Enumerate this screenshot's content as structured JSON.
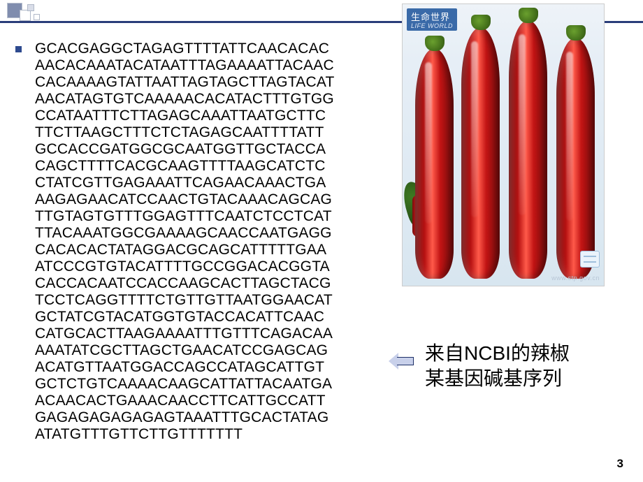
{
  "decor": {
    "rule_color": "#2a3d7a",
    "bullet_color": "#2e4a8f"
  },
  "sequence": "GCACGAGGCTAGAGTTTTATTCAACACAC\nAACACAAATACATAATTTAGAAAATTACAAC\nCACAAAAGTATTAATTAGTAGCTTAGTACAT\nAACATAGTGTCAAAAACACATACTTTGTGG\nCCATAATTTCTTAGAGCAAATTAATGCTTC\nTTCTTAAGCTTTCTCTAGAGCAATTTTATT\nGCCACCGATGGCGCAATGGTTGCTACCA\nCAGCTTTTCACGCAAGTTTTAAGCATCTC\nCTATCGTTGAGAAATTCAGAACAAACTGA\nAAGAGAACATCCAACTGTACAAACAGCAG\nTTGTAGTGTTTGGAGTTTCAATCTCCTCAT\nTTACAAATGGCGAAAAGCAACCAATGAGG\nCACACACTATAGGACGCAGCATTTTTGAA\nATCCCGTGTACATTTTGCCGGACACGGTA\nCACCACAATCCACCAAGCACTTAGCTACG\nTCCTCAGGTTTTCTGTTGTTAATGGAACAT\nGCTATCGTACATGGTGTACCACATTCAAC\nCATGCACTTAAGAAAATTTGTTTCAGACAA\nAAATATCGCTTAGCTGAACATCCGAGCAG\nACATGTTAATGGACCAGCCATAGCATTGT\nGCTCTGTCAAAACAAGCATTATTACAATGA\nACAACACTGAAACAACCTTCATTGCCATT\nGAGAGAGAGAGAGTAAATTTGCACTATAG\nATATGTTTGTTCTTGTTTTTTT",
  "sequence_style": {
    "font_size": 21,
    "line_height": 24,
    "color": "#000000"
  },
  "image": {
    "label_main": "生命世界",
    "label_sub": "LIFE WORLD",
    "pepper_colors": [
      "#b81212",
      "#c21414",
      "#d62424",
      "#7a0c0c"
    ],
    "leaf_color": "#3e7a22",
    "sky_gradient": [
      "#eef3f8",
      "#d8e6f0"
    ],
    "watermark_url": "www.stp.gov.cn"
  },
  "caption": {
    "line1": "来自NCBI的辣椒",
    "line2": "某基因碱基序列",
    "font_size": 28,
    "color": "#000000"
  },
  "arrow": {
    "fill": "#c8d0ea",
    "stroke": "#1c2e66"
  },
  "page_number": "3"
}
